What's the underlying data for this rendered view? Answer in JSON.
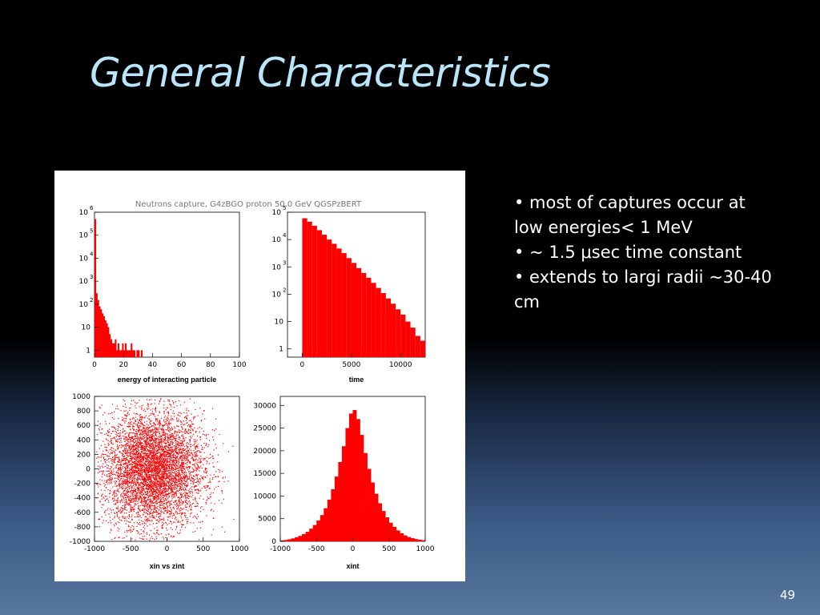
{
  "slide": {
    "title": "General Characteristics",
    "number": "49",
    "bullets": [
      "• most of captures occur at low energies< 1 MeV",
      "• ~ 1.5 μsec time constant",
      "• extends to largi radii ~30-40 cm"
    ]
  },
  "figure": {
    "header": "Neutrons capture, G4zBGO proton 50.0 GeV QGSPzBERT"
  },
  "chart_data": [
    {
      "type": "bar",
      "xlabel": "energy of interacting particle",
      "ylabel": "",
      "yscale": "log",
      "xlim": [
        0,
        100
      ],
      "ylim": [
        1,
        1000000
      ],
      "x_ticks": [
        "0",
        "20",
        "40",
        "60",
        "80",
        "100"
      ],
      "y_ticks": [
        "1",
        "10",
        "10 2",
        "10 3",
        "10 4",
        "10 5",
        "10 6"
      ],
      "x": [
        0,
        1,
        2,
        3,
        4,
        5,
        6,
        7,
        8,
        9,
        10,
        11,
        12,
        13,
        14,
        15,
        16,
        17,
        18,
        19,
        20,
        21,
        22,
        23,
        24,
        25,
        26,
        27,
        28,
        29,
        30,
        31,
        32
      ],
      "values": [
        500000,
        300,
        150,
        80,
        60,
        40,
        30,
        20,
        15,
        10,
        5,
        3,
        2,
        2,
        3,
        1,
        2,
        1,
        1,
        2,
        1,
        2,
        1,
        1,
        1,
        2,
        1,
        1,
        0,
        1,
        1,
        0,
        1
      ],
      "color": "#ff0000"
    },
    {
      "type": "bar",
      "xlabel": "time",
      "ylabel": "",
      "yscale": "log",
      "xlim": [
        -1500,
        12500
      ],
      "ylim": [
        1,
        100000
      ],
      "x_ticks": [
        "0",
        "5000",
        "10000"
      ],
      "y_ticks": [
        "1",
        "10",
        "10 2",
        "10 3",
        "10 4",
        "10 5"
      ],
      "x": [
        0,
        500,
        1000,
        1500,
        2000,
        2500,
        3000,
        3500,
        4000,
        4500,
        5000,
        5500,
        6000,
        6500,
        7000,
        7500,
        8000,
        8500,
        9000,
        9500,
        10000,
        10500,
        11000,
        11500,
        12000
      ],
      "values": [
        60000,
        45000,
        32000,
        22000,
        15000,
        10000,
        7000,
        4700,
        3200,
        2100,
        1400,
        900,
        600,
        400,
        260,
        170,
        110,
        70,
        45,
        28,
        18,
        10,
        6,
        3,
        2
      ],
      "color": "#ff0000"
    },
    {
      "type": "scatter",
      "title": "",
      "xlabel": "xin vs zint",
      "ylabel": "",
      "xlim": [
        -1000,
        1000
      ],
      "ylim": [
        -1000,
        1000
      ],
      "x_ticks": [
        "-1000",
        "-500",
        "0",
        "500",
        "1000"
      ],
      "y_ticks": [
        "-1000",
        "-800",
        "-600",
        "-400",
        "-200",
        "0",
        "200",
        "400",
        "600",
        "800",
        "1000"
      ],
      "distribution": {
        "center_x": -200,
        "center_y": 0,
        "sigma_x": 350,
        "sigma_y": 400
      },
      "color": "#ff0000"
    },
    {
      "type": "bar",
      "xlabel": "xint",
      "ylabel": "",
      "xlim": [
        -1000,
        1000
      ],
      "ylim": [
        0,
        32000
      ],
      "x_ticks": [
        "-1000",
        "-500",
        "0",
        "500",
        "1000"
      ],
      "y_ticks": [
        "0",
        "5000",
        "10000",
        "15000",
        "20000",
        "25000",
        "30000"
      ],
      "x": [
        -1000,
        -950,
        -900,
        -850,
        -800,
        -750,
        -700,
        -650,
        -600,
        -550,
        -500,
        -450,
        -400,
        -350,
        -300,
        -250,
        -200,
        -150,
        -100,
        -50,
        0,
        50,
        100,
        150,
        200,
        250,
        300,
        350,
        400,
        450,
        500,
        550,
        600,
        650,
        700,
        750,
        800,
        850,
        900,
        950
      ],
      "values": [
        200,
        300,
        450,
        650,
        900,
        1200,
        1600,
        2100,
        2800,
        3600,
        4600,
        5800,
        7300,
        9200,
        11500,
        14300,
        17500,
        21000,
        25000,
        28200,
        29000,
        27000,
        23500,
        19500,
        16000,
        13000,
        10500,
        8400,
        6700,
        5300,
        4100,
        3200,
        2400,
        1800,
        1300,
        950,
        700,
        500,
        350,
        250
      ],
      "color": "#ff0000"
    }
  ]
}
